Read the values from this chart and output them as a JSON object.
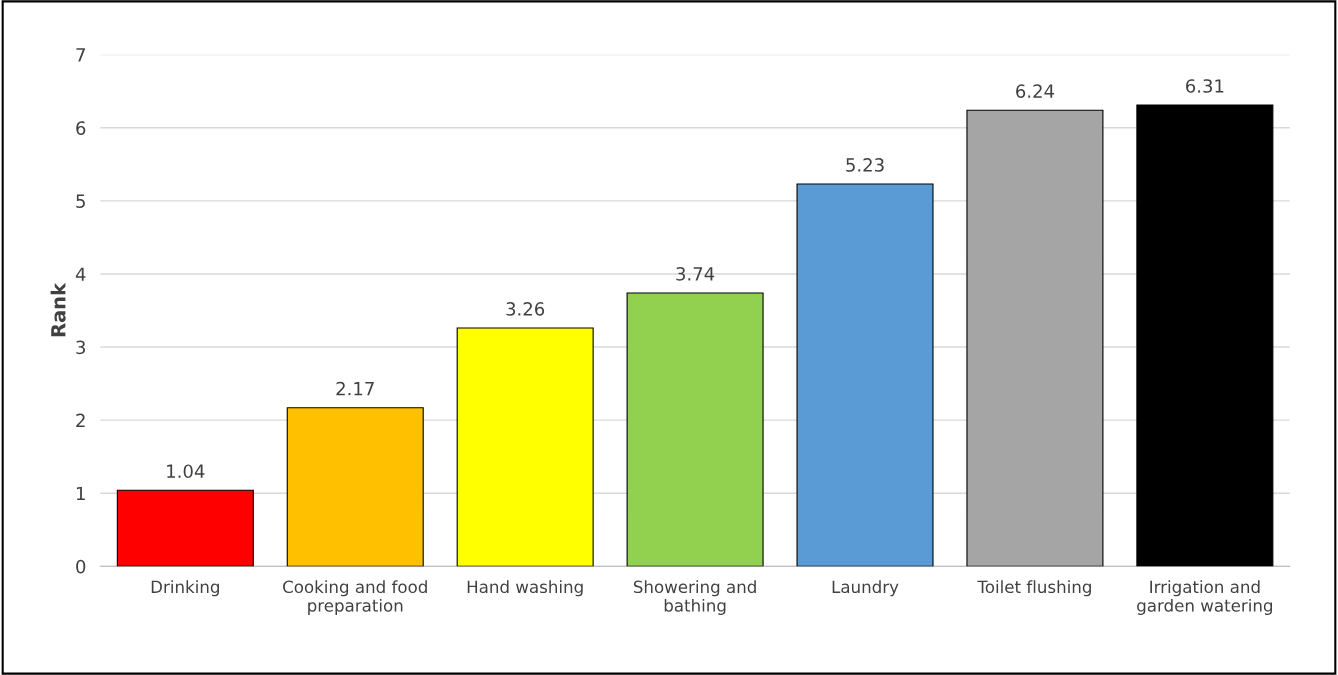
{
  "chart_data": {
    "type": "bar",
    "categories": [
      "Drinking",
      "Cooking and food\npreparation",
      "Hand washing",
      "Showering and\nbathing",
      "Laundry",
      "Toilet flushing",
      "Irrigation and\ngarden watering"
    ],
    "values": [
      1.04,
      2.17,
      3.26,
      3.74,
      5.23,
      6.24,
      6.31
    ],
    "colors": [
      "#ff0000",
      "#ffc000",
      "#ffff00",
      "#92d050",
      "#5b9bd5",
      "#a5a5a5",
      "#000000"
    ],
    "ylabel": "Rank",
    "ylim": [
      0,
      7
    ],
    "yticks": [
      0,
      1,
      2,
      3,
      4,
      5,
      6,
      7
    ],
    "grid": "y",
    "data_labels": true
  }
}
